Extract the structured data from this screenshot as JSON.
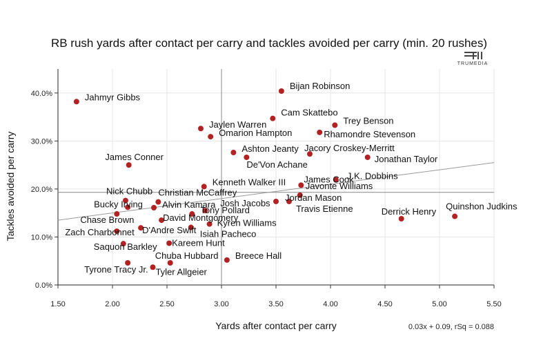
{
  "chart_data": {
    "type": "scatter",
    "title": "RB rush yards after contact per carry and tackles avoided per carry (min. 20 rushes)",
    "xlabel": "Yards after contact per carry",
    "ylabel": "Tackles avoided per carry",
    "xlim": [
      1.5,
      5.5
    ],
    "ylim": [
      0,
      0.45
    ],
    "xticks": [
      1.5,
      2.0,
      2.5,
      3.0,
      3.5,
      4.0,
      4.5,
      5.0,
      5.5
    ],
    "xtick_labels": [
      "1.50",
      "2.00",
      "2.50",
      "3.00",
      "3.50",
      "4.00",
      "4.50",
      "5.00",
      "5.50"
    ],
    "yticks": [
      0,
      0.1,
      0.2,
      0.3,
      0.4
    ],
    "ytick_labels": [
      "0.0%",
      "10.0%",
      "20.0%",
      "30.0%",
      "40.0%"
    ],
    "x_mean": 3.0,
    "y_mean": 0.193,
    "regression": {
      "slope": 0.03,
      "intercept": 0.09,
      "label": "0.03x + 0.09, rSq = 0.088"
    },
    "point_color": "#b22222",
    "points": [
      {
        "name": "Jahmyr Gibbs",
        "x": 1.67,
        "y": 0.382,
        "dx": 12,
        "dy": -2,
        "anchor": "start"
      },
      {
        "name": "Bijan Robinson",
        "x": 3.55,
        "y": 0.404,
        "dx": 12,
        "dy": -3,
        "anchor": "start"
      },
      {
        "name": "Cam Skattebo",
        "x": 3.47,
        "y": 0.347,
        "dx": 12,
        "dy": -4,
        "anchor": "start"
      },
      {
        "name": "Trey Benson",
        "x": 4.04,
        "y": 0.333,
        "dx": 12,
        "dy": -2,
        "anchor": "start"
      },
      {
        "name": "Jaylen Warren",
        "x": 2.81,
        "y": 0.326,
        "dx": 12,
        "dy": -1,
        "anchor": "start"
      },
      {
        "name": "Omarion Hampton",
        "x": 2.9,
        "y": 0.309,
        "dx": 12,
        "dy": -1,
        "anchor": "start"
      },
      {
        "name": "Rhamondre Stevenson",
        "x": 3.9,
        "y": 0.318,
        "dx": 6,
        "dy": 7,
        "anchor": "start"
      },
      {
        "name": "Ashton Jeanty",
        "x": 3.11,
        "y": 0.276,
        "dx": 12,
        "dy": -1,
        "anchor": "start"
      },
      {
        "name": "Jacory Croskey-Merritt",
        "x": 3.81,
        "y": 0.273,
        "dx": -8,
        "dy": -4,
        "anchor": "start"
      },
      {
        "name": "De'Von Achane",
        "x": 3.23,
        "y": 0.266,
        "dx": 0,
        "dy": 15,
        "anchor": "start"
      },
      {
        "name": "Jonathan Taylor",
        "x": 4.34,
        "y": 0.266,
        "dx": 10,
        "dy": 7,
        "anchor": "start"
      },
      {
        "name": "James Conner",
        "x": 2.15,
        "y": 0.25,
        "dx": 8,
        "dy": -7,
        "anchor": "middle"
      },
      {
        "name": "J.K. Dobbins",
        "x": 4.05,
        "y": 0.219,
        "dx": 16,
        "dy": -1,
        "anchor": "start"
      },
      {
        "name": "James Cook",
        "x": 3.73,
        "y": 0.208,
        "dx": 4,
        "dy": -4,
        "anchor": "start"
      },
      {
        "name": "Kenneth Walker III",
        "x": 2.84,
        "y": 0.205,
        "dx": 12,
        "dy": -2,
        "anchor": "start"
      },
      {
        "name": "Javonte Williams",
        "x": 3.72,
        "y": 0.187,
        "dx": 8,
        "dy": -9,
        "anchor": "start"
      },
      {
        "name": "Nick Chubb",
        "x": 2.12,
        "y": 0.176,
        "dx": -28,
        "dy": -9,
        "anchor": "start"
      },
      {
        "name": "Christian McCaffrey",
        "x": 2.42,
        "y": 0.173,
        "dx": 0,
        "dy": -9,
        "anchor": "start"
      },
      {
        "name": "Jordan Mason",
        "x": 3.5,
        "y": 0.174,
        "dx": 13,
        "dy": -1,
        "anchor": "start"
      },
      {
        "name": "Bucky Irving",
        "x": 2.14,
        "y": 0.162,
        "dx": -49,
        "dy": 0,
        "anchor": "start"
      },
      {
        "name": "Alvin Kamara",
        "x": 2.38,
        "y": 0.161,
        "dx": 12,
        "dy": 0,
        "anchor": "start"
      },
      {
        "name": "Josh Jacobs",
        "x": 2.85,
        "y": 0.155,
        "dx": 22,
        "dy": -6,
        "anchor": "start"
      },
      {
        "name": "Travis Etienne",
        "x": 3.62,
        "y": 0.174,
        "dx": 10,
        "dy": 15,
        "anchor": "start"
      },
      {
        "name": "Tony Pollard",
        "x": 2.73,
        "y": 0.148,
        "dx": 12,
        "dy": -1,
        "anchor": "start"
      },
      {
        "name": "Derrick Henry",
        "x": 4.65,
        "y": 0.138,
        "dx": -29,
        "dy": -6,
        "anchor": "start"
      },
      {
        "name": "Quinshon Judkins",
        "x": 5.14,
        "y": 0.143,
        "dx": -13,
        "dy": -10,
        "anchor": "start"
      },
      {
        "name": "Chase Brown",
        "x": 2.04,
        "y": 0.148,
        "dx": -53,
        "dy": 13,
        "anchor": "start"
      },
      {
        "name": "David Montgomery",
        "x": 2.45,
        "y": 0.135,
        "dx": 2,
        "dy": 1,
        "anchor": "start"
      },
      {
        "name": "Kyren Williams",
        "x": 2.89,
        "y": 0.127,
        "dx": 11,
        "dy": 3,
        "anchor": "start"
      },
      {
        "name": "D'Andre Swift",
        "x": 2.26,
        "y": 0.119,
        "dx": 2,
        "dy": 8,
        "anchor": "start"
      },
      {
        "name": "Isiah Pacheco",
        "x": 2.72,
        "y": 0.12,
        "dx": 13,
        "dy": 14,
        "anchor": "start"
      },
      {
        "name": "Zach Charbonnet",
        "x": 2.04,
        "y": 0.112,
        "dx": -75,
        "dy": 6,
        "anchor": "start"
      },
      {
        "name": "Kareem Hunt",
        "x": 2.52,
        "y": 0.087,
        "dx": 4,
        "dy": 4,
        "anchor": "start"
      },
      {
        "name": "Saquon Barkley",
        "x": 2.1,
        "y": 0.086,
        "dx": -43,
        "dy": 9,
        "anchor": "start"
      },
      {
        "name": "Chuba Hubbard",
        "x": 2.53,
        "y": 0.046,
        "dx": -22,
        "dy": -6,
        "anchor": "start"
      },
      {
        "name": "Breece Hall",
        "x": 3.05,
        "y": 0.052,
        "dx": 12,
        "dy": -2,
        "anchor": "start"
      },
      {
        "name": "Tyrone Tracy Jr.",
        "x": 2.14,
        "y": 0.046,
        "dx": -63,
        "dy": 14,
        "anchor": "start"
      },
      {
        "name": "Tyler Allgeier",
        "x": 2.37,
        "y": 0.037,
        "dx": 4,
        "dy": 11,
        "anchor": "start"
      }
    ]
  },
  "logo": {
    "text": "TRUMEDIA"
  }
}
